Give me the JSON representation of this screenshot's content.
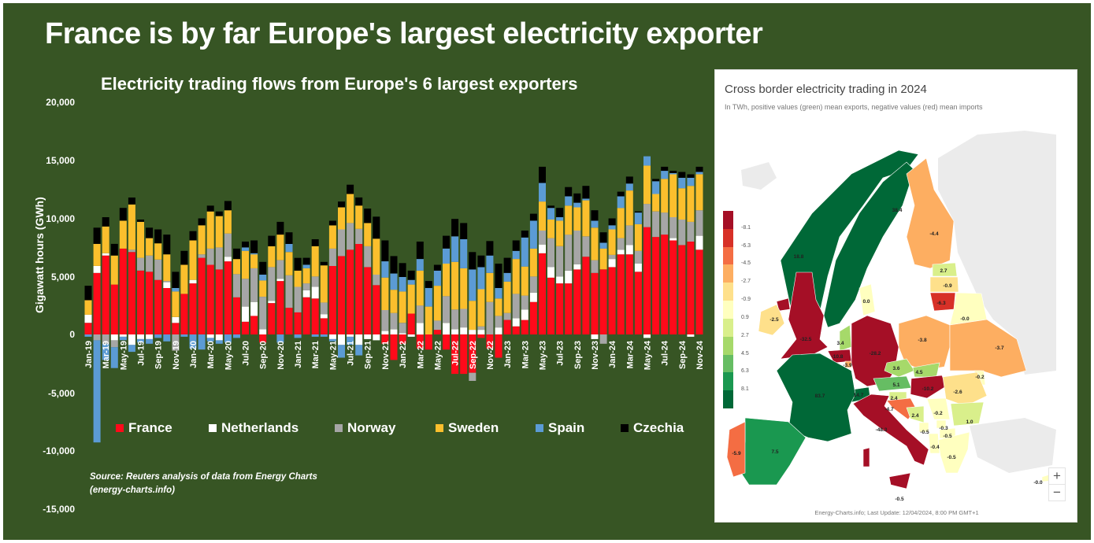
{
  "title": "France is by far Europe's largest electricity exporter",
  "chart_data": {
    "type": "bar",
    "stacked": true,
    "title": "Electricity trading flows from Europe's 6 largest exporters",
    "ylabel": "Gigawatt hours (GWh)",
    "xlabel": "",
    "ylim": [
      -15000,
      20000
    ],
    "y_ticks": [
      "20,000",
      "15,000",
      "10,000",
      "5,000",
      "0",
      "-5,000",
      "-10,000",
      "-15,000"
    ],
    "x_tick_labels": [
      "Jan-19",
      "Mar-19",
      "May-19",
      "Jul-19",
      "Sep-19",
      "Nov-19",
      "Jan-20",
      "Mar-20",
      "May-20",
      "Jul-20",
      "Sep-20",
      "Nov-20",
      "Jan-21",
      "Mar-21",
      "May-21",
      "Jul-21",
      "Sep-21",
      "Nov-21",
      "Jan-22",
      "Mar-22",
      "May-22",
      "Jul-22",
      "Sep-22",
      "Nov-22",
      "Jan-23",
      "Mar-23",
      "May-23",
      "Jul-23",
      "Sep-23",
      "Nov-23",
      "Jan-24",
      "Mar-24",
      "May-24",
      "Jul-24",
      "Sep-24",
      "Nov-24"
    ],
    "x_range": "Jan-19 to Nov-24 (monthly)",
    "legend_position": "bottom",
    "source": "Source: Reuters analysis of data from Energy Charts",
    "source_line2": "(energy-charts.info)",
    "series": [
      {
        "name": "France",
        "color": "#ff0a1a",
        "values": [
          1000,
          5300,
          6800,
          4300,
          7400,
          7100,
          5500,
          5400,
          4700,
          4000,
          1000,
          3500,
          4400,
          6600,
          6000,
          5600,
          6300,
          3200,
          1100,
          1600,
          -700,
          2700,
          4600,
          2300,
          1900,
          3200,
          3100,
          1400,
          5900,
          6750,
          7300,
          7800,
          5800,
          4250,
          -800,
          -2200,
          -800,
          1800,
          -1200,
          -1300,
          400,
          -1300,
          -3400,
          -3400,
          -3300,
          -300,
          -1200,
          -2000,
          1250,
          700,
          1250,
          2800,
          7000,
          4900,
          4400,
          4400,
          5600,
          6700,
          5300,
          5600,
          5800,
          6900,
          6900,
          5400,
          9250,
          8400,
          8600,
          8100,
          7700,
          8000,
          7300
        ]
      },
      {
        "name": "Netherlands",
        "color": "#ffffff",
        "values": [
          700,
          600,
          200,
          -500,
          -200,
          -900,
          -400,
          -400,
          0,
          500,
          500,
          0,
          300,
          0,
          -300,
          -500,
          400,
          0,
          1300,
          1200,
          450,
          200,
          200,
          0,
          0,
          600,
          1000,
          350,
          -400,
          -900,
          -200,
          -900,
          -400,
          -500,
          300,
          450,
          100,
          -200,
          1000,
          0,
          0,
          1000,
          450,
          600,
          400,
          400,
          0,
          600,
          0,
          700,
          900,
          800,
          750,
          900,
          600,
          1100,
          450,
          0,
          -400,
          0,
          700,
          400,
          800,
          700,
          -300,
          0,
          0,
          200,
          0,
          -200,
          1200
        ]
      },
      {
        "name": "Norway",
        "color": "#a6a6a6",
        "values": [
          0,
          -500,
          -800,
          -600,
          0,
          200,
          1100,
          1400,
          1750,
          100,
          -1400,
          0,
          0,
          300,
          1400,
          1900,
          2000,
          2000,
          2400,
          2900,
          2800,
          2900,
          1600,
          2800,
          2200,
          600,
          900,
          1000,
          1500,
          2300,
          2300,
          1300,
          1800,
          900,
          1800,
          1400,
          900,
          0,
          1500,
          0,
          800,
          2300,
          1700,
          1600,
          -700,
          300,
          2800,
          1000,
          600,
          2100,
          1200,
          1400,
          1200,
          2500,
          2600,
          3100,
          2900,
          1750,
          1100,
          -800,
          350,
          1000,
          1700,
          1100,
          2000,
          2200,
          1900,
          1800,
          2200,
          1700,
          2200
        ]
      },
      {
        "name": "Sweden",
        "color": "#fbbf2d",
        "values": [
          1250,
          1900,
          2300,
          2500,
          2400,
          3900,
          3100,
          1500,
          1400,
          2300,
          2200,
          2500,
          3400,
          2500,
          3200,
          2700,
          2000,
          1300,
          2400,
          1200,
          1400,
          1800,
          2200,
          2000,
          1400,
          1300,
          2600,
          3200,
          2000,
          1900,
          2500,
          2000,
          2000,
          3100,
          2800,
          2000,
          2700,
          2500,
          3000,
          2400,
          3000,
          2800,
          4100,
          3500,
          2500,
          3200,
          2500,
          1500,
          2700,
          3000,
          2500,
          2400,
          2500,
          1600,
          2200,
          2500,
          2000,
          3100,
          2800,
          1800,
          2200,
          2600,
          3000,
          2300,
          3300,
          1500,
          2900,
          3700,
          2700,
          3100,
          3100
        ]
      },
      {
        "name": "Spain",
        "color": "#5b9bd5",
        "values": [
          -200,
          -8800,
          -1400,
          -1800,
          -300,
          -600,
          -300,
          -400,
          -300,
          -600,
          300,
          -200,
          -1200,
          -1300,
          -300,
          -300,
          -700,
          -300,
          300,
          100,
          500,
          0,
          -700,
          700,
          -300,
          300,
          -200,
          -200,
          -200,
          -1100,
          -700,
          -900,
          0,
          0,
          1400,
          1400,
          1250,
          400,
          1000,
          1600,
          1300,
          1300,
          2200,
          2500,
          2700,
          1900,
          1500,
          900,
          750,
          700,
          2500,
          2400,
          1600,
          1000,
          300,
          800,
          400,
          150,
          600,
          500,
          350,
          1000,
          600,
          1000,
          800,
          1100,
          700,
          100,
          900,
          700,
          200
        ]
      },
      {
        "name": "Czechia",
        "color": "#000000",
        "values": [
          1250,
          1400,
          800,
          1000,
          1100,
          600,
          200,
          900,
          1200,
          1700,
          1400,
          1200,
          800,
          600,
          500,
          400,
          800,
          900,
          500,
          1100,
          1100,
          900,
          1100,
          1000,
          1100,
          600,
          600,
          300,
          400,
          500,
          800,
          700,
          1250,
          1900,
          1800,
          1500,
          1200,
          800,
          1500,
          600,
          500,
          1100,
          1500,
          1400,
          1500,
          1000,
          1250,
          2100,
          1300,
          900,
          600,
          600,
          1400,
          200,
          800,
          800,
          800,
          1100,
          900,
          900,
          600,
          400,
          600,
          100,
          0,
          200,
          350,
          200,
          500,
          300,
          450
        ]
      }
    ]
  },
  "map": {
    "title": "Cross border electricity trading in 2024",
    "subtitle": "In TWh, positive values (green) mean exports, negative values (red) mean imports",
    "footer": "Energy-Charts.info; Last Update: 12/04/2024, 8:00 PM GMT+1",
    "zoom_in": "+",
    "zoom_out": "−",
    "colorbar_labels": [
      "-8.1",
      "-6.3",
      "-4.5",
      "-2.7",
      "-0.9",
      "0.9",
      "2.7",
      "4.5",
      "6.3",
      "8.1"
    ],
    "colorbar_colors": [
      "#a50f26",
      "#d73027",
      "#f46d43",
      "#fdae61",
      "#fee08b",
      "#ffffbf",
      "#d9ef8b",
      "#a6d96a",
      "#66bd63",
      "#1a9850",
      "#006837"
    ],
    "values": {
      "norway": "18.8",
      "sweden": "38.4",
      "finland": "-4.4",
      "estonia": "2.7",
      "latvia": "-0.9",
      "lithuania": "-6.3",
      "belarus": "-0.0",
      "uk": "-32.5",
      "ireland": "-2.5",
      "denmark": "0.0",
      "netherlands": "3.4",
      "belgium": "-10.8",
      "luxembourg": "-3.9",
      "germany": "-28.2",
      "poland": "-3.8",
      "ukraine": "-3.7",
      "moldova": "-0.2",
      "czechia": "3.6",
      "slovakia": "4.5",
      "austria": "5.1",
      "hungary": "-10.2",
      "switzerland": "14.7",
      "france": "83.7",
      "slovenia": "2.4",
      "croatia": "-4.7",
      "bosnia": "2.4",
      "serbia": "-0.2",
      "romania": "-2.6",
      "bulgaria": "1.0",
      "montenegro": "-0.5",
      "kosovo": "-0.3",
      "macedonia": "-0.5",
      "albania": "-0.4",
      "greece": "-0.5",
      "italy": "-48.3",
      "spain": "7.5",
      "portugal": "-5.9",
      "malta": "-0.5",
      "cyprus": "-0.0"
    }
  }
}
